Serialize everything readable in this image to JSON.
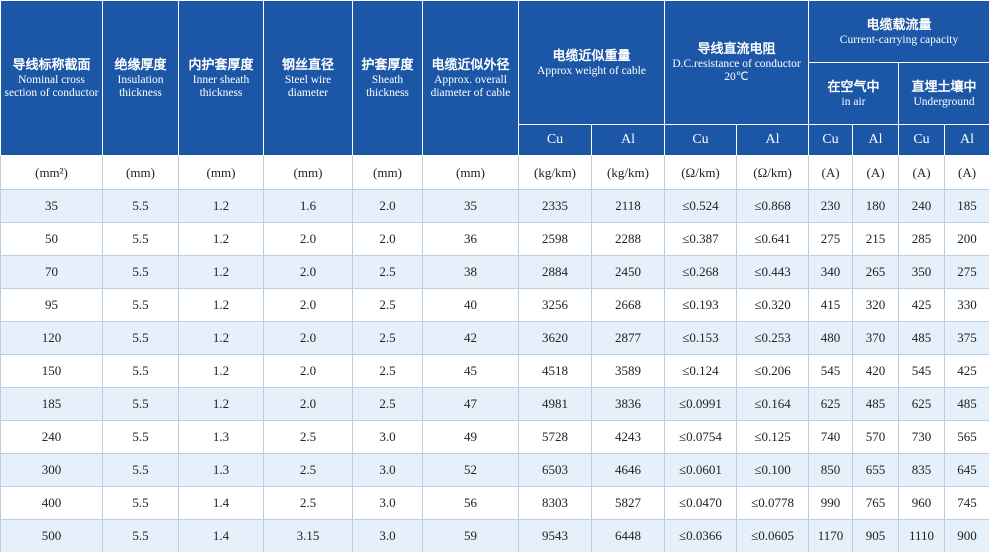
{
  "header": {
    "columns": [
      {
        "zh": "导线标称截面",
        "en": "Nominal cross section of conductor"
      },
      {
        "zh": "绝缘厚度",
        "en": "Insulation thickness"
      },
      {
        "zh": "内护套厚度",
        "en": "Inner sheath thickness"
      },
      {
        "zh": "钢丝直径",
        "en": "Steel wire diameter"
      },
      {
        "zh": "护套厚度",
        "en": "Sheath thickness"
      },
      {
        "zh": "电缆近似外径",
        "en": "Approx. overall diameter of cable"
      }
    ],
    "weight": {
      "zh": "电缆近似重量",
      "en": "Approx weight of cable"
    },
    "resistance": {
      "zh": "导线直流电阻",
      "en": "D.C.resistance of conductor 20℃"
    },
    "capacity": {
      "zh": "电缆载流量",
      "en": "Current-carrying capacity"
    },
    "in_air": {
      "zh": "在空气中",
      "en": "in air"
    },
    "underground": {
      "zh": "直埋土壤中",
      "en": "Underground"
    },
    "materials": [
      "Cu",
      "Al",
      "Cu",
      "Al",
      "Cu",
      "Al",
      "Cu",
      "Al"
    ]
  },
  "units": [
    "(mm²)",
    "(mm)",
    "(mm)",
    "(mm)",
    "(mm)",
    "(mm)",
    "(kg/km)",
    "(kg/km)",
    "(Ω/km)",
    "(Ω/km)",
    "(A)",
    "(A)",
    "(A)",
    "(A)"
  ],
  "rows": [
    [
      "35",
      "5.5",
      "1.2",
      "1.6",
      "2.0",
      "35",
      "2335",
      "2118",
      "≤0.524",
      "≤0.868",
      "230",
      "180",
      "240",
      "185"
    ],
    [
      "50",
      "5.5",
      "1.2",
      "2.0",
      "2.0",
      "36",
      "2598",
      "2288",
      "≤0.387",
      "≤0.641",
      "275",
      "215",
      "285",
      "200"
    ],
    [
      "70",
      "5.5",
      "1.2",
      "2.0",
      "2.5",
      "38",
      "2884",
      "2450",
      "≤0.268",
      "≤0.443",
      "340",
      "265",
      "350",
      "275"
    ],
    [
      "95",
      "5.5",
      "1.2",
      "2.0",
      "2.5",
      "40",
      "3256",
      "2668",
      "≤0.193",
      "≤0.320",
      "415",
      "320",
      "425",
      "330"
    ],
    [
      "120",
      "5.5",
      "1.2",
      "2.0",
      "2.5",
      "42",
      "3620",
      "2877",
      "≤0.153",
      "≤0.253",
      "480",
      "370",
      "485",
      "375"
    ],
    [
      "150",
      "5.5",
      "1.2",
      "2.0",
      "2.5",
      "45",
      "4518",
      "3589",
      "≤0.124",
      "≤0.206",
      "545",
      "420",
      "545",
      "425"
    ],
    [
      "185",
      "5.5",
      "1.2",
      "2.0",
      "2.5",
      "47",
      "4981",
      "3836",
      "≤0.0991",
      "≤0.164",
      "625",
      "485",
      "625",
      "485"
    ],
    [
      "240",
      "5.5",
      "1.3",
      "2.5",
      "3.0",
      "49",
      "5728",
      "4243",
      "≤0.0754",
      "≤0.125",
      "740",
      "570",
      "730",
      "565"
    ],
    [
      "300",
      "5.5",
      "1.3",
      "2.5",
      "3.0",
      "52",
      "6503",
      "4646",
      "≤0.0601",
      "≤0.100",
      "850",
      "655",
      "835",
      "645"
    ],
    [
      "400",
      "5.5",
      "1.4",
      "2.5",
      "3.0",
      "56",
      "8303",
      "5827",
      "≤0.0470",
      "≤0.0778",
      "990",
      "765",
      "960",
      "745"
    ],
    [
      "500",
      "5.5",
      "1.4",
      "3.15",
      "3.0",
      "59",
      "9543",
      "6448",
      "≤0.0366",
      "≤0.0605",
      "1170",
      "905",
      "1110",
      "900"
    ]
  ]
}
